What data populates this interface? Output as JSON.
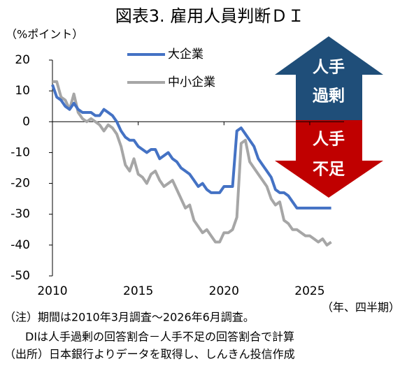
{
  "chart_data": {
    "type": "line",
    "title": "図表3. 雇用人員判断ＤＩ",
    "y_label": "（%ポイント）",
    "x_label": "（年、四半期）",
    "x": [
      2010,
      2010.25,
      2010.5,
      2010.75,
      2011,
      2011.25,
      2011.5,
      2011.75,
      2012,
      2012.25,
      2012.5,
      2012.75,
      2013,
      2013.25,
      2013.5,
      2013.75,
      2014,
      2014.25,
      2014.5,
      2014.75,
      2015,
      2015.25,
      2015.5,
      2015.75,
      2016,
      2016.25,
      2016.5,
      2016.75,
      2017,
      2017.25,
      2017.5,
      2017.75,
      2018,
      2018.25,
      2018.5,
      2018.75,
      2019,
      2019.25,
      2019.5,
      2019.75,
      2020,
      2020.25,
      2020.5,
      2020.75,
      2021,
      2021.25,
      2021.5,
      2021.75,
      2022,
      2022.25,
      2022.5,
      2022.75,
      2023,
      2023.25,
      2023.5,
      2023.75,
      2024,
      2024.25,
      2024.5,
      2024.75,
      2025,
      2025.25,
      2025.5,
      2025.75,
      2026,
      2026.25
    ],
    "series": [
      {
        "name": "大企業",
        "color": "#4472c4",
        "values": [
          12,
          8,
          7,
          5,
          4,
          6,
          4,
          3,
          3,
          3,
          2,
          2,
          4,
          3,
          2,
          0,
          -3,
          -5,
          -6,
          -6,
          -8,
          -9,
          -10,
          -9,
          -9,
          -12,
          -11,
          -10,
          -12,
          -13,
          -15,
          -16,
          -17,
          -19,
          -21,
          -20,
          -22,
          -23,
          -23,
          -23,
          -21,
          -21,
          -21,
          -3,
          -2,
          -4,
          -6,
          -8,
          -12,
          -14,
          -16,
          -18,
          -22,
          -23,
          -23,
          -24,
          -26,
          -28,
          -28,
          -28,
          -28,
          -28,
          -28,
          -28,
          -28,
          -28
        ]
      },
      {
        "name": "中小企業",
        "color": "#a6a6a6",
        "values": [
          13,
          13,
          8,
          7,
          4,
          9,
          3,
          1,
          0,
          1,
          0,
          -1,
          -3,
          -1,
          -2,
          -4,
          -8,
          -14,
          -16,
          -12,
          -17,
          -18,
          -20,
          -17,
          -16,
          -19,
          -21,
          -20,
          -19,
          -22,
          -25,
          -28,
          -27,
          -32,
          -34,
          -36,
          -35,
          -37,
          -39,
          -39,
          -36,
          -36,
          -35,
          -31,
          -7,
          -6,
          -13,
          -15,
          -17,
          -19,
          -21,
          -25,
          -27,
          -26,
          -32,
          -33,
          -35,
          -35,
          -36,
          -37,
          -37,
          -38,
          -39,
          -38,
          -40,
          -39
        ]
      }
    ],
    "xlim": [
      2010,
      2027
    ],
    "xticks": [
      2010,
      2015,
      2020,
      2025
    ],
    "ylim": [
      -50,
      20
    ],
    "yticks": [
      -50,
      -40,
      -30,
      -20,
      -10,
      0,
      10,
      20
    ],
    "arrow_up_label": [
      "人手",
      "過剰"
    ],
    "arrow_down_label": [
      "人手",
      "不足"
    ],
    "notes": [
      "（注）期間は2010年3月調査～2026年6月調査。",
      "DIは人手過剰の回答割合－人手不足の回答割合で計算",
      "（出所）日本銀行よりデータを取得し、しんきん投信作成"
    ]
  }
}
